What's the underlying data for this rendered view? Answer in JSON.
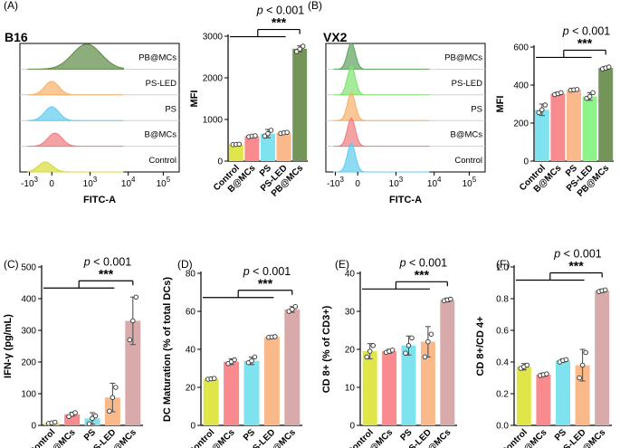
{
  "figure": {
    "panel_labels": [
      "(A)",
      "(B)",
      "(C)",
      "(D)",
      "(E)",
      "(F)"
    ]
  },
  "chart_data": [
    {
      "id": "A-hist",
      "panel": "(A)",
      "type": "histogram",
      "title": "B16",
      "xlabel": "FITC-A",
      "x_ticks": [
        "-10",
        "0",
        "10",
        "10",
        "10"
      ],
      "x_tick_exps": [
        "3",
        "",
        "3",
        "4",
        "5"
      ],
      "tracks": [
        {
          "label": "PB@MCs",
          "color": "#5e8a45",
          "peak": 0.78
        },
        {
          "label": "PS-LED",
          "color": "#f6b06a",
          "peak": 0.42
        },
        {
          "label": "PS",
          "color": "#5ecdf0",
          "peak": 0.43
        },
        {
          "label": "B@MCs",
          "color": "#f07a7e",
          "peak": 0.41
        },
        {
          "label": "Control",
          "color": "#d5db36",
          "peak": 0.31
        }
      ]
    },
    {
      "id": "A-bar",
      "panel": "(A)",
      "type": "bar",
      "categories": [
        "Control",
        "B@MCs",
        "PS",
        "PS-LED",
        "PB@MCs"
      ],
      "values": [
        400,
        600,
        660,
        680,
        2700
      ],
      "errors": [
        10,
        20,
        100,
        15,
        70
      ],
      "points": [
        [
          395,
          400,
          405
        ],
        [
          585,
          600,
          610
        ],
        [
          600,
          660,
          740
        ],
        [
          665,
          680,
          690
        ],
        [
          2630,
          2690,
          2760
        ]
      ],
      "colors": [
        "#e0e64a",
        "#f98a8e",
        "#7fe3ef",
        "#f9b98a",
        "#74955a"
      ],
      "ylabel": "MFI",
      "ylim": [
        0,
        3000
      ],
      "yticks": [
        0,
        1000,
        2000,
        3000
      ],
      "yticklabels": [
        "0",
        "1000",
        "2000",
        "3000"
      ],
      "pvalue": "p < 0.001",
      "sig": "***",
      "bracket_group": [
        0,
        3
      ],
      "bracket_target": 4
    },
    {
      "id": "B-hist",
      "panel": "(B)",
      "type": "histogram",
      "title": "VX2",
      "xlabel": "FITC-A",
      "x_ticks": [
        "-10",
        "0",
        "10",
        "10",
        "10"
      ],
      "x_tick_exps": [
        "3",
        "",
        "3",
        "4",
        "5"
      ],
      "tracks": [
        {
          "label": "PB@MCs",
          "color": "#5ea35e",
          "peak": 0.82
        },
        {
          "label": "PS-LED",
          "color": "#7fe36e",
          "peak": 0.9
        },
        {
          "label": "PS",
          "color": "#f6b06a",
          "peak": 0.86
        },
        {
          "label": "B@MCs",
          "color": "#f07a7e",
          "peak": 0.88
        },
        {
          "label": "Control",
          "color": "#5ecdf0",
          "peak": 0.9
        }
      ]
    },
    {
      "id": "B-bar",
      "panel": "(B)",
      "type": "bar",
      "categories": [
        "Control",
        "B@MCs",
        "PS",
        "PS-LED",
        "PB@MCs"
      ],
      "values": [
        270,
        355,
        375,
        340,
        490
      ],
      "errors": [
        30,
        8,
        3,
        20,
        8
      ],
      "points": [
        [
          255,
          270,
          295
        ],
        [
          350,
          355,
          360
        ],
        [
          373,
          375,
          377
        ],
        [
          330,
          340,
          360
        ],
        [
          485,
          490,
          495
        ]
      ],
      "colors": [
        "#7fe3ef",
        "#f98a8e",
        "#f9b98a",
        "#8ef48a",
        "#74955a"
      ],
      "ylabel": "MFI",
      "ylim": [
        0,
        600
      ],
      "yticks": [
        0,
        200,
        400,
        600
      ],
      "yticklabels": [
        "0",
        "200",
        "400",
        "600"
      ],
      "pvalue": "p < 0.001",
      "sig": "***",
      "bracket_group": [
        0,
        3
      ],
      "bracket_target": 4
    },
    {
      "id": "C-bar",
      "panel": "(C)",
      "type": "bar",
      "categories": [
        "Control",
        "B@MCs",
        "PS",
        "PS-LED",
        "PB@MCs"
      ],
      "values": [
        8,
        35,
        22,
        88,
        330
      ],
      "errors": [
        2,
        6,
        18,
        45,
        75
      ],
      "points": [
        [
          6,
          8,
          10
        ],
        [
          28,
          35,
          40
        ],
        [
          5,
          22,
          30
        ],
        [
          45,
          88,
          120
        ],
        [
          270,
          330,
          405
        ]
      ],
      "colors": [
        "#e0e64a",
        "#f98a8e",
        "#7fe3ef",
        "#f9b98a",
        "#d8aaaa"
      ],
      "ylabel": "IFN-γ (pg/mL)",
      "ylim": [
        0,
        500
      ],
      "yticks": [
        0,
        100,
        200,
        300,
        400,
        500
      ],
      "yticklabels": [
        "0",
        "100",
        "200",
        "300",
        "400",
        "500"
      ],
      "pvalue": "p < 0.001",
      "sig": "***",
      "bracket_group": [
        0,
        3
      ],
      "bracket_target": 4
    },
    {
      "id": "D-bar",
      "panel": "(D)",
      "type": "bar",
      "categories": [
        "Control",
        "B@MCs",
        "PS",
        "PS-LED",
        "PB@MCs"
      ],
      "values": [
        24.5,
        33.5,
        34,
        46.5,
        61
      ],
      "errors": [
        0.5,
        1.5,
        2,
        0.3,
        1.5
      ],
      "points": [
        [
          24.3,
          24.5,
          24.7
        ],
        [
          32.5,
          33.5,
          34.5
        ],
        [
          33,
          34,
          36
        ],
        [
          46.3,
          46.5,
          46.7
        ],
        [
          60,
          61,
          62.5
        ]
      ],
      "colors": [
        "#e0e64a",
        "#f98a8e",
        "#7fe3ef",
        "#f9b98a",
        "#d8aaaa"
      ],
      "ylabel": "DC Maturation (% of total DCs)",
      "ylim": [
        0,
        80
      ],
      "yticks": [
        0,
        20,
        40,
        60,
        80
      ],
      "yticklabels": [
        "0",
        "20",
        "40",
        "60",
        "80"
      ],
      "pvalue": "p < 0.001",
      "sig": "***",
      "bracket_group": [
        0,
        3
      ],
      "bracket_target": 4
    },
    {
      "id": "E-bar",
      "panel": "(E)",
      "type": "bar",
      "categories": [
        "Control",
        "B@MCs",
        "PS",
        "PS-LED",
        "PB@MCs"
      ],
      "values": [
        19.5,
        19.5,
        21,
        22,
        33
      ],
      "errors": [
        2,
        0.5,
        2.5,
        4,
        0.5
      ],
      "points": [
        [
          18,
          19.5,
          21
        ],
        [
          19.2,
          19.5,
          19.8
        ],
        [
          19,
          21,
          23
        ],
        [
          18,
          22,
          24
        ],
        [
          32.8,
          33,
          33.2
        ]
      ],
      "colors": [
        "#e0e64a",
        "#f98a8e",
        "#7fe3ef",
        "#f9b98a",
        "#d8aaaa"
      ],
      "ylabel": "CD 8+ (% of CD3+)",
      "ylim": [
        0,
        40
      ],
      "yticks": [
        0,
        10,
        20,
        30,
        40
      ],
      "yticklabels": [
        "0",
        "10",
        "20",
        "30",
        "40"
      ],
      "pvalue": "p < 0.001",
      "sig": "***",
      "bracket_group": [
        0,
        3
      ],
      "bracket_target": 4
    },
    {
      "id": "F-bar",
      "panel": "(F)",
      "type": "bar",
      "categories": [
        "Control",
        "B@MCs",
        "PS",
        "PS-LED",
        "PB@MCs"
      ],
      "values": [
        0.37,
        0.32,
        0.41,
        0.38,
        0.85
      ],
      "errors": [
        0.02,
        0.01,
        0.01,
        0.1,
        0.01
      ],
      "points": [
        [
          0.36,
          0.37,
          0.38
        ],
        [
          0.315,
          0.32,
          0.325
        ],
        [
          0.4,
          0.41,
          0.415
        ],
        [
          0.3,
          0.38,
          0.46
        ],
        [
          0.845,
          0.85,
          0.855
        ]
      ],
      "colors": [
        "#e0e64a",
        "#f98a8e",
        "#7fe3ef",
        "#f9b98a",
        "#d8aaaa"
      ],
      "ylabel": "CD 8+/CD 4+",
      "ylim": [
        0,
        1.0
      ],
      "yticks": [
        0,
        0.2,
        0.4,
        0.6,
        0.8,
        1.0
      ],
      "yticklabels": [
        "0.0",
        "0.2",
        "0.4",
        "0.6",
        "0.8",
        "1.0"
      ],
      "pvalue": "p < 0.001",
      "sig": "***",
      "bracket_group": [
        0,
        3
      ],
      "bracket_target": 4
    }
  ]
}
